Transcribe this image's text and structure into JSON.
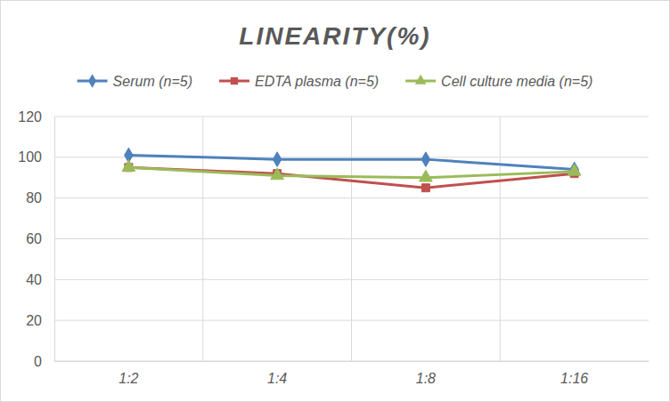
{
  "chart_data": {
    "type": "line",
    "title": "LINEARITY(%)",
    "categories": [
      "1:2",
      "1:4",
      "1:8",
      "1:16"
    ],
    "series": [
      {
        "name": "Serum (n=5)",
        "color": "#4f81bd",
        "marker": "diamond",
        "values": [
          101,
          99,
          99,
          94
        ]
      },
      {
        "name": "EDTA plasma (n=5)",
        "color": "#c0504d",
        "marker": "square",
        "values": [
          95,
          92,
          85,
          92
        ]
      },
      {
        "name": "Cell culture media (n=5)",
        "color": "#9bbb59",
        "marker": "triangle",
        "values": [
          95,
          91,
          90,
          93
        ]
      }
    ],
    "ylim": [
      0,
      120
    ],
    "yticks": [
      0,
      20,
      40,
      60,
      80,
      100,
      120
    ],
    "grid": true,
    "legend": "top"
  }
}
